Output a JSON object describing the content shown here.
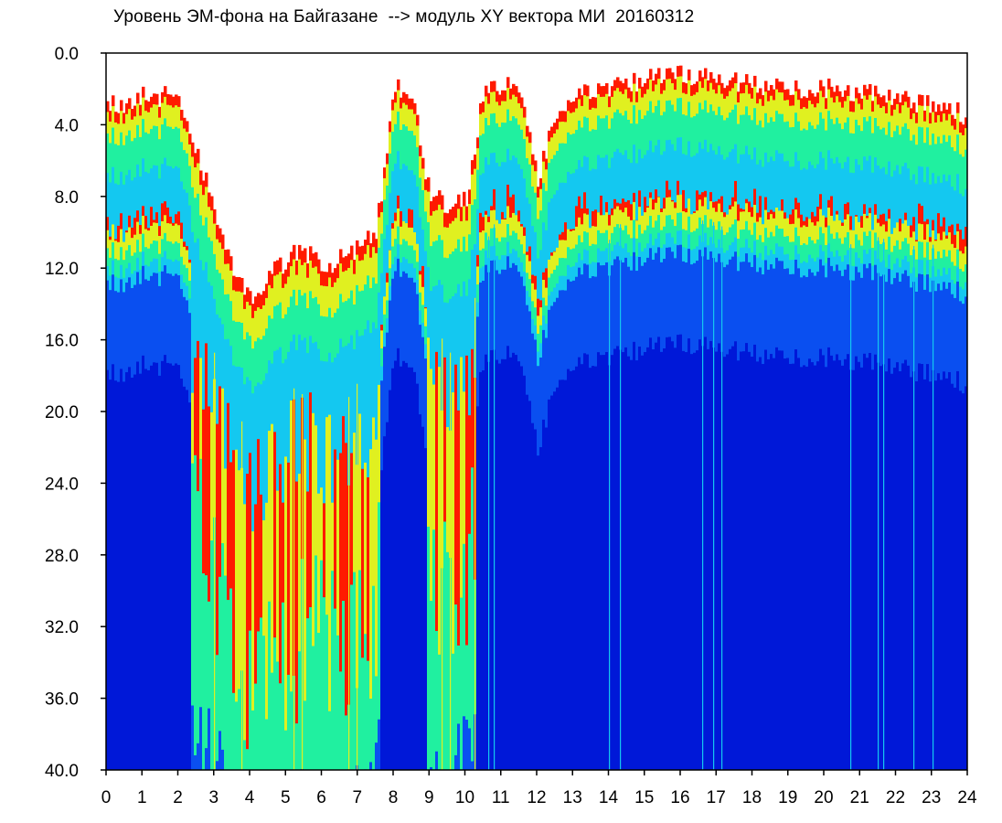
{
  "chart_data": {
    "type": "heatmap",
    "title": "Уровень ЭМ-фона на Байгазане  --> модуль XY вектора МИ  20160312",
    "xlabel": "",
    "ylabel": "",
    "x_ticks": [
      "0",
      "1",
      "2",
      "3",
      "4",
      "5",
      "6",
      "7",
      "8",
      "9",
      "10",
      "11",
      "12",
      "13",
      "14",
      "15",
      "16",
      "17",
      "18",
      "19",
      "20",
      "21",
      "22",
      "23",
      "24"
    ],
    "y_ticks": [
      "0.0",
      "4.0",
      "8.0",
      "12.0",
      "16.0",
      "20.0",
      "24.0",
      "28.0",
      "32.0",
      "36.0",
      "40.0"
    ],
    "xlim": [
      0,
      24
    ],
    "ylim": [
      0,
      40
    ],
    "y_axis_inverted": true,
    "grid": false,
    "colorscale": [
      "#0018d8",
      "#0a4ff0",
      "#14c8f0",
      "#20f0a0",
      "#e0f020",
      "#ff1a00"
    ],
    "upper_boundary": {
      "hours": [
        0,
        0.3,
        0.6,
        1.0,
        1.5,
        2.0,
        2.5,
        3.0,
        3.5,
        4.0,
        4.5,
        5.0,
        5.5,
        6.0,
        6.5,
        7.0,
        7.5,
        8.0,
        8.5,
        9.0,
        9.5,
        10.0,
        10.5,
        11.0,
        11.5,
        12.0,
        12.5,
        13.0,
        14.0,
        15.0,
        16.0,
        17.0,
        18.0,
        19.0,
        20.0,
        21.0,
        22.0,
        23.0,
        24.0
      ],
      "levels": [
        2.5,
        3.0,
        2.8,
        2.2,
        2.5,
        2.2,
        5.5,
        9.0,
        12.0,
        13.5,
        12.5,
        11.5,
        11.0,
        12.0,
        11.5,
        11.0,
        10.0,
        2.0,
        2.2,
        8.0,
        8.5,
        8.2,
        2.0,
        1.8,
        2.2,
        7.0,
        3.5,
        2.5,
        2.0,
        1.5,
        1.2,
        1.3,
        1.8,
        2.0,
        2.0,
        2.2,
        2.5,
        3.0,
        3.5
      ]
    }
  }
}
